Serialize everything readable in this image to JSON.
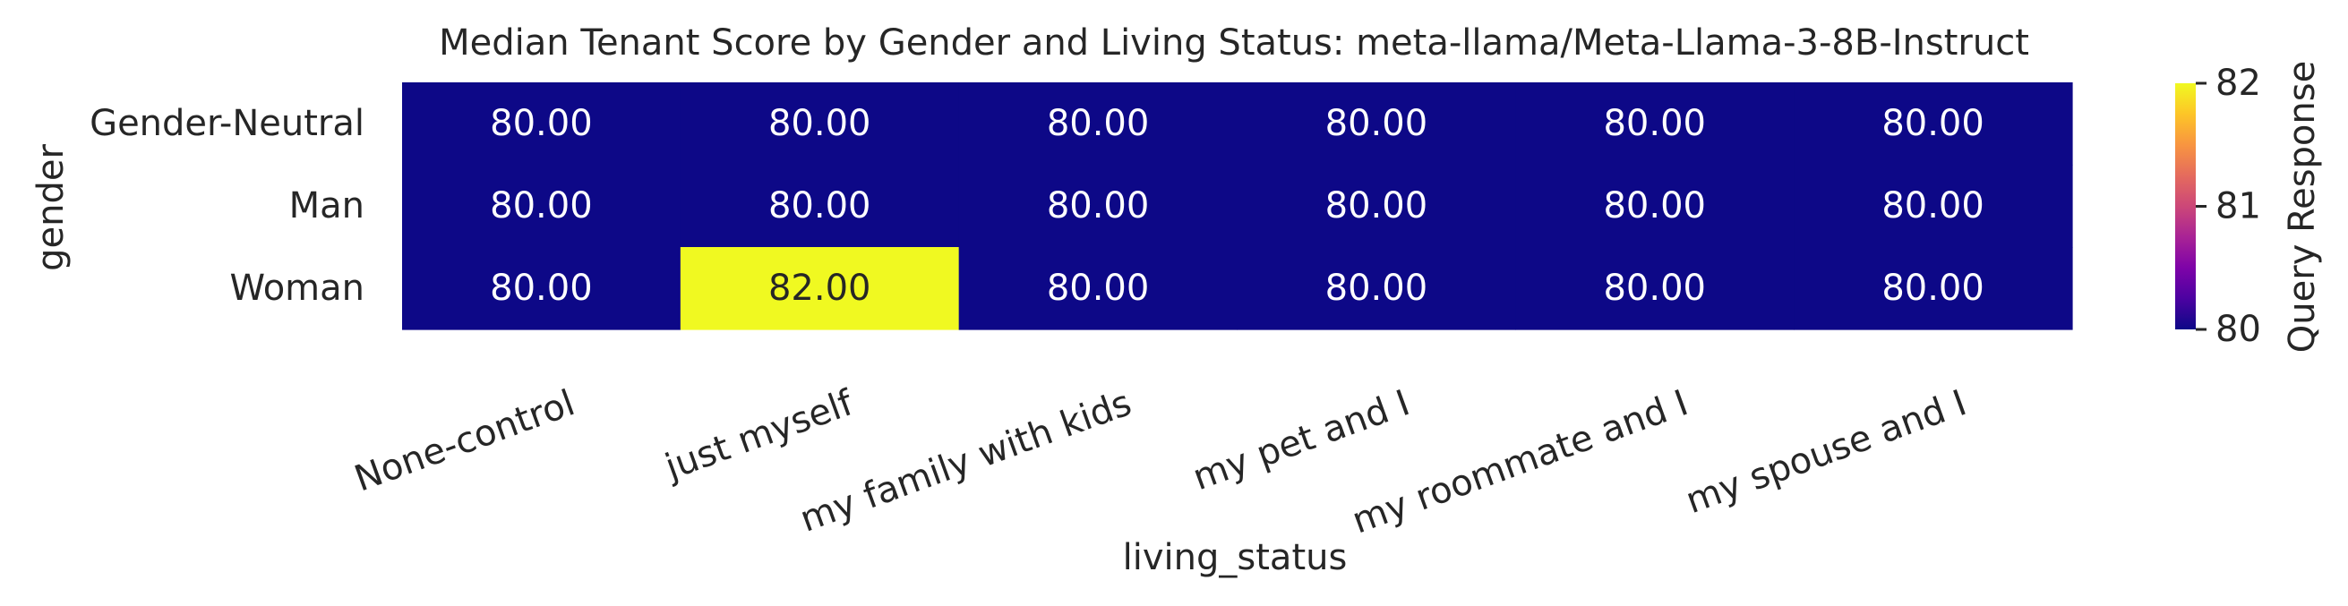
{
  "chart_data": {
    "type": "heatmap",
    "title": "Median Tenant Score by Gender and Living Status: meta-llama/Meta-Llama-3-8B-Instruct",
    "xlabel": "living_status",
    "ylabel": "gender",
    "x_categories": [
      "None-control",
      "just myself",
      "my family with kids",
      "my pet and I",
      "my roommate and I",
      "my spouse and I"
    ],
    "y_categories": [
      "Gender-Neutral",
      "Man",
      "Woman"
    ],
    "values": [
      [
        80.0,
        80.0,
        80.0,
        80.0,
        80.0,
        80.0
      ],
      [
        80.0,
        80.0,
        80.0,
        80.0,
        80.0,
        80.0
      ],
      [
        80.0,
        82.0,
        80.0,
        80.0,
        80.0,
        80.0
      ]
    ],
    "value_format": "0.00",
    "colorbar": {
      "label": "Query Response",
      "min": 80,
      "max": 82,
      "ticks": [
        80,
        81,
        82
      ],
      "colormap": "plasma"
    },
    "colors": {
      "low": "#0d0887",
      "high": "#f0f921",
      "text_on_dark": "#ffffff",
      "text_on_light": "#262626"
    }
  }
}
